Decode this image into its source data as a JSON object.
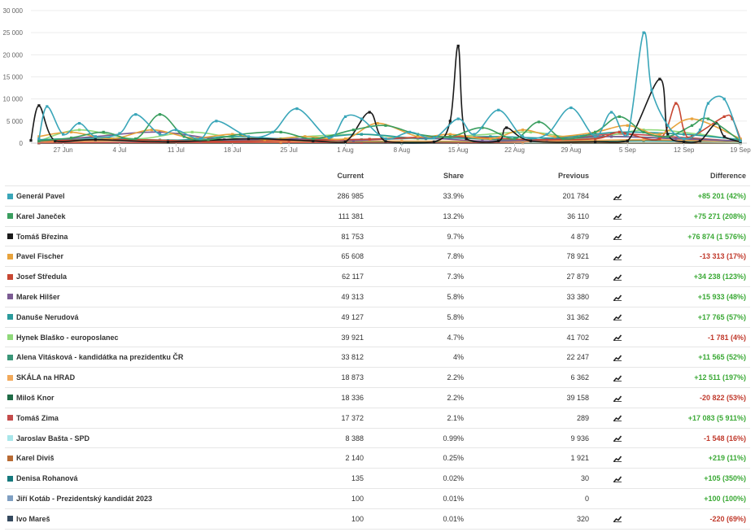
{
  "chart_data": {
    "type": "line",
    "ylim": [
      0,
      30000
    ],
    "yticks": [
      0,
      5000,
      10000,
      15000,
      20000,
      25000,
      30000
    ],
    "ytick_labels": [
      "0",
      "5 000",
      "10 000",
      "15 000",
      "20 000",
      "25 000",
      "30 000"
    ],
    "x_start": "2022-06-23",
    "x_end": "2022-09-19",
    "xticks": [
      "2022-06-27",
      "2022-07-04",
      "2022-07-11",
      "2022-07-18",
      "2022-07-25",
      "2022-08-01",
      "2022-08-08",
      "2022-08-15",
      "2022-08-22",
      "2022-08-29",
      "2022-09-05",
      "2022-09-12",
      "2022-09-19"
    ],
    "xtick_labels": [
      "27 Jun",
      "4 Jul",
      "11 Jul",
      "18 Jul",
      "25 Jul",
      "1 Aug",
      "8 Aug",
      "15 Aug",
      "22 Aug",
      "29 Aug",
      "5 Sep",
      "12 Sep",
      "19 Sep"
    ],
    "grid": true,
    "series": [
      {
        "name": "Generál Pavel",
        "color": "#3aa6b9",
        "x": [
          "2022-06-24",
          "2022-06-25",
          "2022-06-27",
          "2022-06-29",
          "2022-07-01",
          "2022-07-04",
          "2022-07-06",
          "2022-07-09",
          "2022-07-11",
          "2022-07-14",
          "2022-07-16",
          "2022-07-20",
          "2022-07-23",
          "2022-07-26",
          "2022-07-30",
          "2022-08-01",
          "2022-08-03",
          "2022-08-06",
          "2022-08-09",
          "2022-08-12",
          "2022-08-15",
          "2022-08-17",
          "2022-08-20",
          "2022-08-23",
          "2022-08-26",
          "2022-08-29",
          "2022-09-01",
          "2022-09-03",
          "2022-09-05",
          "2022-09-07",
          "2022-09-08",
          "2022-09-10",
          "2022-09-12",
          "2022-09-14",
          "2022-09-15",
          "2022-09-17",
          "2022-09-19"
        ],
        "values": [
          1000,
          8300,
          2000,
          4500,
          1500,
          2200,
          6500,
          2000,
          3000,
          1000,
          5000,
          1500,
          2500,
          7800,
          1200,
          6000,
          5500,
          1000,
          2500,
          1200,
          5500,
          2000,
          7500,
          1500,
          2000,
          8000,
          1500,
          7000,
          2000,
          25000,
          12000,
          4000,
          1000,
          3000,
          9000,
          10000,
          500
        ]
      },
      {
        "name": "Karel Janeček",
        "color": "#3a9e5f",
        "x": [
          "2022-06-24",
          "2022-06-28",
          "2022-07-02",
          "2022-07-06",
          "2022-07-09",
          "2022-07-12",
          "2022-07-15",
          "2022-07-19",
          "2022-07-24",
          "2022-07-28",
          "2022-08-02",
          "2022-08-06",
          "2022-08-10",
          "2022-08-14",
          "2022-08-18",
          "2022-08-22",
          "2022-08-25",
          "2022-08-28",
          "2022-09-01",
          "2022-09-04",
          "2022-09-07",
          "2022-09-10",
          "2022-09-13",
          "2022-09-15",
          "2022-09-19"
        ],
        "values": [
          500,
          1200,
          2500,
          1000,
          6500,
          1500,
          800,
          2000,
          2500,
          1000,
          3000,
          4000,
          2000,
          1500,
          3500,
          1000,
          4800,
          1000,
          2500,
          6000,
          2500,
          1500,
          4000,
          5500,
          500
        ]
      },
      {
        "name": "Tomáš Březina",
        "color": "#1a1a1a",
        "x": [
          "2022-06-23",
          "2022-06-24",
          "2022-06-26",
          "2022-07-01",
          "2022-07-10",
          "2022-07-20",
          "2022-07-28",
          "2022-08-01",
          "2022-08-04",
          "2022-08-06",
          "2022-08-12",
          "2022-08-14",
          "2022-08-15",
          "2022-08-16",
          "2022-08-20",
          "2022-08-21",
          "2022-08-24",
          "2022-09-01",
          "2022-09-05",
          "2022-09-09",
          "2022-09-10",
          "2022-09-12",
          "2022-09-14",
          "2022-09-16",
          "2022-09-17",
          "2022-09-19"
        ],
        "values": [
          600,
          8500,
          500,
          800,
          300,
          1000,
          500,
          300,
          7000,
          400,
          300,
          5000,
          22000,
          1000,
          500,
          3500,
          500,
          300,
          500,
          14500,
          2000,
          300,
          500,
          4500,
          1500,
          300
        ]
      },
      {
        "name": "Pavel Fischer",
        "color": "#e8a33c",
        "x": [
          "2022-06-24",
          "2022-06-28",
          "2022-07-03",
          "2022-07-08",
          "2022-07-13",
          "2022-07-18",
          "2022-07-22",
          "2022-07-27",
          "2022-08-01",
          "2022-08-05",
          "2022-08-10",
          "2022-08-14",
          "2022-08-19",
          "2022-08-23",
          "2022-08-27",
          "2022-09-01",
          "2022-09-05",
          "2022-09-09",
          "2022-09-13",
          "2022-09-19"
        ],
        "values": [
          1500,
          2500,
          1000,
          3000,
          1200,
          2000,
          800,
          1500,
          1000,
          4500,
          1500,
          2000,
          1000,
          3000,
          1500,
          2500,
          4000,
          2000,
          5500,
          1000
        ]
      },
      {
        "name": "Josef Středula",
        "color": "#c74732",
        "x": [
          "2022-06-24",
          "2022-07-05",
          "2022-07-15",
          "2022-07-25",
          "2022-08-04",
          "2022-08-14",
          "2022-08-24",
          "2022-09-01",
          "2022-09-04",
          "2022-09-09",
          "2022-09-11",
          "2022-09-12",
          "2022-09-13",
          "2022-09-17",
          "2022-09-18",
          "2022-09-19"
        ],
        "values": [
          500,
          800,
          400,
          600,
          900,
          1500,
          800,
          1000,
          2500,
          1000,
          9000,
          3000,
          1500,
          6000,
          5500,
          1000
        ]
      },
      {
        "name": "Marek Hilšer",
        "color": "#7b5b93",
        "x": [
          "2022-06-24",
          "2022-07-01",
          "2022-07-09",
          "2022-07-17",
          "2022-07-25",
          "2022-08-02",
          "2022-08-10",
          "2022-08-18",
          "2022-08-26",
          "2022-09-03",
          "2022-09-11",
          "2022-09-19"
        ],
        "values": [
          400,
          1500,
          2500,
          800,
          1000,
          600,
          1200,
          500,
          800,
          1500,
          1000,
          500
        ]
      },
      {
        "name": "Danuše Nerudová",
        "color": "#2b9b9c",
        "x": [
          "2022-06-24",
          "2022-07-02",
          "2022-07-10",
          "2022-07-18",
          "2022-07-26",
          "2022-08-03",
          "2022-08-11",
          "2022-08-19",
          "2022-08-27",
          "2022-09-04",
          "2022-09-12",
          "2022-09-19"
        ],
        "values": [
          800,
          1200,
          600,
          1500,
          900,
          2000,
          1000,
          1500,
          1200,
          2500,
          2000,
          800
        ]
      },
      {
        "name": "Hynek Blaško - europoslanec",
        "color": "#8fd97a",
        "x": [
          "2022-06-24",
          "2022-06-29",
          "2022-07-06",
          "2022-07-13",
          "2022-07-20",
          "2022-07-27",
          "2022-08-03",
          "2022-08-10",
          "2022-08-17",
          "2022-08-24",
          "2022-08-31",
          "2022-09-07",
          "2022-09-14",
          "2022-09-19"
        ],
        "values": [
          500,
          3000,
          1000,
          2500,
          800,
          1500,
          2000,
          1000,
          1800,
          2500,
          1000,
          3000,
          2000,
          500
        ]
      },
      {
        "name": "Alena Vitásková - kandidátka na prezidentku ČR",
        "color": "#3a9678",
        "x": [
          "2022-06-24",
          "2022-07-04",
          "2022-07-14",
          "2022-07-24",
          "2022-08-03",
          "2022-08-13",
          "2022-08-23",
          "2022-09-02",
          "2022-09-12",
          "2022-09-19"
        ],
        "values": [
          600,
          900,
          500,
          1000,
          800,
          1200,
          700,
          1500,
          1000,
          400
        ]
      },
      {
        "name": "SKÁLA na HRAD",
        "color": "#f2a95a",
        "x": [
          "2022-06-24",
          "2022-07-09",
          "2022-07-24",
          "2022-08-08",
          "2022-08-23",
          "2022-09-07",
          "2022-09-19"
        ],
        "values": [
          300,
          600,
          400,
          500,
          400,
          800,
          300
        ]
      },
      {
        "name": "Miloš Knor",
        "color": "#1f6b46",
        "x": [
          "2022-06-24",
          "2022-07-09",
          "2022-07-24",
          "2022-08-08",
          "2022-08-23",
          "2022-09-07",
          "2022-09-19"
        ],
        "values": [
          400,
          700,
          500,
          300,
          400,
          600,
          300
        ]
      },
      {
        "name": "Tomáš Zima",
        "color": "#c44b4b",
        "x": [
          "2022-06-24",
          "2022-07-14",
          "2022-08-03",
          "2022-08-23",
          "2022-09-03",
          "2022-09-10",
          "2022-09-19"
        ],
        "values": [
          100,
          200,
          150,
          300,
          2000,
          1500,
          400
        ]
      },
      {
        "name": "Jaroslav Bašta - SPD",
        "color": "#a8e6ea",
        "x": [
          "2022-06-24",
          "2022-07-14",
          "2022-08-03",
          "2022-08-23",
          "2022-09-12",
          "2022-09-19"
        ],
        "values": [
          200,
          300,
          250,
          200,
          300,
          150
        ]
      },
      {
        "name": "Karel Diviš",
        "color": "#b86a33",
        "x": [
          "2022-06-24",
          "2022-07-24",
          "2022-08-23",
          "2022-09-19"
        ],
        "values": [
          50,
          100,
          80,
          50
        ]
      },
      {
        "name": "Denisa Rohanová",
        "color": "#16797d",
        "x": [
          "2022-06-24",
          "2022-08-08",
          "2022-09-19"
        ],
        "values": [
          10,
          20,
          10
        ]
      },
      {
        "name": "Jiří Kotáb - Prezidentský kandidát 2023",
        "color": "#7f9fc2",
        "x": [
          "2022-06-24",
          "2022-08-08",
          "2022-09-19"
        ],
        "values": [
          10,
          15,
          10
        ]
      },
      {
        "name": "Ivo Mareš",
        "color": "#34495e",
        "x": [
          "2022-06-24",
          "2022-08-08",
          "2022-09-19"
        ],
        "values": [
          10,
          20,
          10
        ]
      }
    ]
  },
  "table": {
    "headers": {
      "current": "Current",
      "share": "Share",
      "previous": "Previous",
      "difference": "Difference"
    },
    "rows": [
      {
        "name": "Generál Pavel",
        "color": "#3aa6b9",
        "current": "286 985",
        "share": "33.9%",
        "previous": "201 784",
        "trend": true,
        "diff": "+85 201 (42%)",
        "dir": "pos"
      },
      {
        "name": "Karel Janeček",
        "color": "#3a9e5f",
        "current": "111 381",
        "share": "13.2%",
        "previous": "36 110",
        "trend": true,
        "diff": "+75 271 (208%)",
        "dir": "pos"
      },
      {
        "name": "Tomáš Březina",
        "color": "#1a1a1a",
        "current": "81 753",
        "share": "9.7%",
        "previous": "4 879",
        "trend": true,
        "diff": "+76 874 (1 576%)",
        "dir": "pos"
      },
      {
        "name": "Pavel Fischer",
        "color": "#e8a33c",
        "current": "65 608",
        "share": "7.8%",
        "previous": "78 921",
        "trend": true,
        "diff": "-13 313 (17%)",
        "dir": "neg"
      },
      {
        "name": "Josef Středula",
        "color": "#c74732",
        "current": "62 117",
        "share": "7.3%",
        "previous": "27 879",
        "trend": true,
        "diff": "+34 238 (123%)",
        "dir": "pos"
      },
      {
        "name": "Marek Hilšer",
        "color": "#7b5b93",
        "current": "49 313",
        "share": "5.8%",
        "previous": "33 380",
        "trend": true,
        "diff": "+15 933 (48%)",
        "dir": "pos"
      },
      {
        "name": "Danuše Nerudová",
        "color": "#2b9b9c",
        "current": "49 127",
        "share": "5.8%",
        "previous": "31 362",
        "trend": true,
        "diff": "+17 765 (57%)",
        "dir": "pos"
      },
      {
        "name": "Hynek Blaško - europoslanec",
        "color": "#8fd97a",
        "current": "39 921",
        "share": "4.7%",
        "previous": "41 702",
        "trend": true,
        "diff": "-1 781 (4%)",
        "dir": "neg"
      },
      {
        "name": "Alena Vitásková - kandidátka na prezidentku ČR",
        "color": "#3a9678",
        "current": "33 812",
        "share": "4%",
        "previous": "22 247",
        "trend": true,
        "diff": "+11 565 (52%)",
        "dir": "pos"
      },
      {
        "name": "SKÁLA na HRAD",
        "color": "#f2a95a",
        "current": "18 873",
        "share": "2.2%",
        "previous": "6 362",
        "trend": true,
        "diff": "+12 511 (197%)",
        "dir": "pos"
      },
      {
        "name": "Miloš Knor",
        "color": "#1f6b46",
        "current": "18 336",
        "share": "2.2%",
        "previous": "39 158",
        "trend": true,
        "diff": "-20 822 (53%)",
        "dir": "neg"
      },
      {
        "name": "Tomáš Zima",
        "color": "#c44b4b",
        "current": "17 372",
        "share": "2.1%",
        "previous": "289",
        "trend": true,
        "diff": "+17 083 (5 911%)",
        "dir": "pos"
      },
      {
        "name": "Jaroslav Bašta - SPD",
        "color": "#a8e6ea",
        "current": "8 388",
        "share": "0.99%",
        "previous": "9 936",
        "trend": true,
        "diff": "-1 548 (16%)",
        "dir": "neg"
      },
      {
        "name": "Karel Diviš",
        "color": "#b86a33",
        "current": "2 140",
        "share": "0.25%",
        "previous": "1 921",
        "trend": true,
        "diff": "+219 (11%)",
        "dir": "pos"
      },
      {
        "name": "Denisa Rohanová",
        "color": "#16797d",
        "current": "135",
        "share": "0.02%",
        "previous": "30",
        "trend": true,
        "diff": "+105 (350%)",
        "dir": "pos"
      },
      {
        "name": "Jiří Kotáb - Prezidentský kandidát 2023",
        "color": "#7f9fc2",
        "current": "100",
        "share": "0.01%",
        "previous": "0",
        "trend": false,
        "diff": "+100 (100%)",
        "dir": "pos"
      },
      {
        "name": "Ivo Mareš",
        "color": "#34495e",
        "current": "100",
        "share": "0.01%",
        "previous": "320",
        "trend": true,
        "diff": "-220 (69%)",
        "dir": "neg"
      }
    ]
  }
}
